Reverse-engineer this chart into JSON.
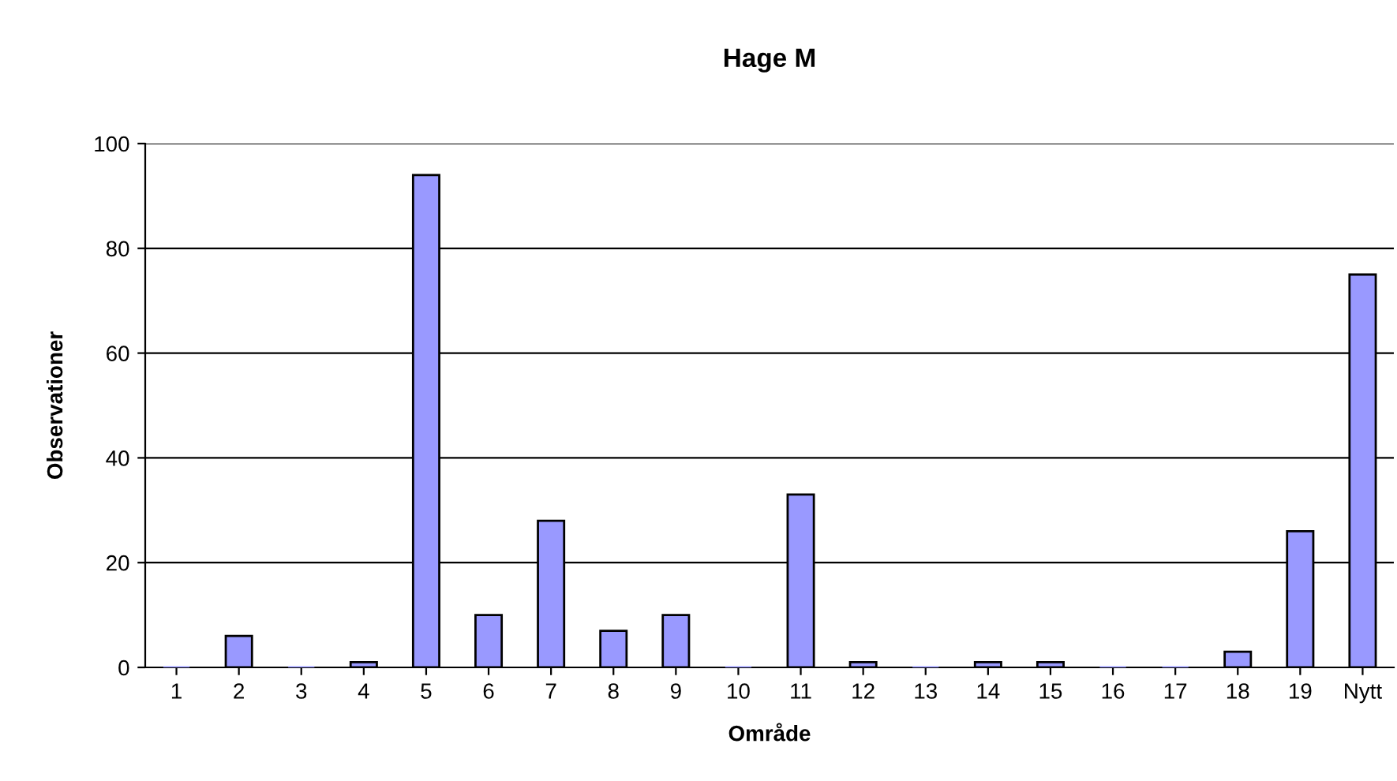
{
  "chart_data": {
    "type": "bar",
    "title": "Hage M",
    "xlabel": "Område",
    "ylabel": "Observationer",
    "categories": [
      "1",
      "2",
      "3",
      "4",
      "5",
      "6",
      "7",
      "8",
      "9",
      "10",
      "11",
      "12",
      "13",
      "14",
      "15",
      "16",
      "17",
      "18",
      "19",
      "Nytt"
    ],
    "values": [
      0,
      6,
      0,
      1,
      94,
      10,
      28,
      7,
      10,
      0,
      33,
      1,
      0,
      1,
      1,
      0,
      0,
      3,
      26,
      75
    ],
    "color": "#9999ff",
    "ylim": [
      0,
      100
    ],
    "yticks": [
      0,
      20,
      40,
      60,
      80,
      100
    ],
    "grid": "y",
    "legend": false
  }
}
